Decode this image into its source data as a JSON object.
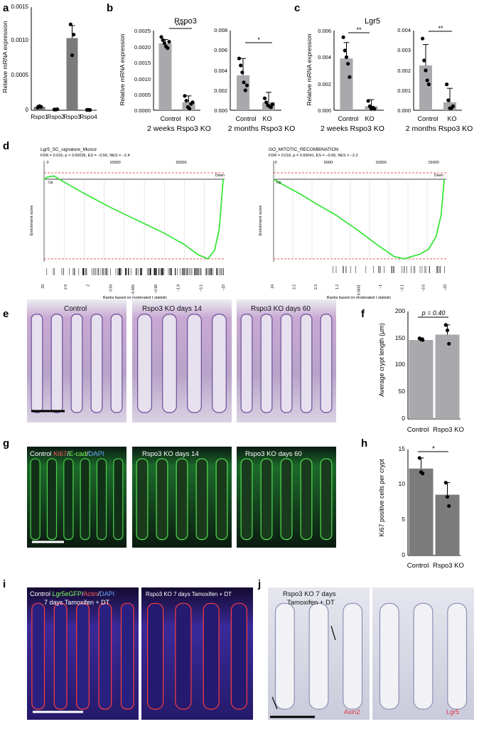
{
  "panels": {
    "a": {
      "letter": "a",
      "ylabel": "Relative mRNA expression",
      "yticks": [
        "0",
        "0.0005",
        "0.0010",
        "0.0015"
      ]
    },
    "b": {
      "letter": "b",
      "title": "Rspo3",
      "ylabel": "Relative mRNA expression",
      "left_yticks": [
        "0.0000",
        "0.0005",
        "0.0010",
        "0.0015",
        "0.0020",
        "0.0025"
      ],
      "right_yticks": [
        "0.000",
        "0.002",
        "0.004",
        "0.006",
        "0.008"
      ],
      "xcats": [
        "Control",
        "KO"
      ],
      "left_sig": "****",
      "right_sig": "*",
      "left_caption": "2 weeks Rspo3 KO",
      "right_caption": "2 months Rspo3 KO"
    },
    "c": {
      "letter": "c",
      "title": "Lgr5",
      "ylabel": "Relative mRNA expression",
      "left_yticks": [
        "0.000",
        "0.002",
        "0.004",
        "0.006"
      ],
      "right_yticks": [
        "0.000",
        "0.001",
        "0.002",
        "0.003",
        "0.004"
      ],
      "xcats": [
        "Control",
        "KO"
      ],
      "left_sig": "**",
      "right_sig": "**",
      "left_caption": "2 weeks Rspo3 KO",
      "right_caption": "2 months Rspo3 KO"
    },
    "d": {
      "letter": "d",
      "left_title": "Lgr5_SC_signature_Munoz",
      "left_stats": "FDR = 0.016, p = 0.00036, ES = −0.56, NES = −2.4",
      "left_top_ticks": [
        "0",
        "10000",
        "20000"
      ],
      "left_bottom_ticks": [
        "29",
        "2.9",
        "2",
        "0.94",
        "−0.065",
        "−0.98",
        "−1.9",
        "−3.1",
        "−23"
      ],
      "right_title": "GO_MITOTIC_RECOMBINATION",
      "right_stats": "FDR = 0.016, p = 0.00041, ES = −0.66, NES = −2.2",
      "right_top_ticks": [
        "0",
        "5000",
        "10000",
        "15000"
      ],
      "right_bottom_ticks": [
        "24",
        "3.2",
        "2.3",
        "1.2",
        "−0.0641",
        "−1",
        "−2.1",
        "−3.5",
        "−23"
      ],
      "ylabel": "Enrichment score",
      "xlabel": "Ranks based on moderated t statistic",
      "up_label": "Up",
      "down_label": "Down"
    },
    "e": {
      "letter": "e",
      "labels": [
        "Control",
        "Rspo3 KO days 14",
        "Rspo3 KO days 60"
      ]
    },
    "f": {
      "letter": "f",
      "ylabel": "Average crypt length (μm)",
      "yticks": [
        "0",
        "50",
        "100",
        "150",
        "200"
      ],
      "xcats": [
        "Control",
        "Rspo3 KO"
      ],
      "pval": "p = 0.40"
    },
    "g": {
      "letter": "g",
      "stain_ki67": "Ki67",
      "stain_ecad": "E-cad",
      "stain_dapi": "DAPI",
      "stain_sep": "/",
      "labels": [
        "Control",
        "Rspo3 KO days 14",
        "Rspo3 KO days 60"
      ]
    },
    "h": {
      "letter": "h",
      "ylabel": "Ki67 positive cells per crypt",
      "yticks": [
        "0",
        "5",
        "10",
        "15"
      ],
      "xcats": [
        "Control",
        "Rspo3 KO"
      ],
      "sig": "*"
    },
    "i": {
      "letter": "i",
      "left_label_ctrl": "Control",
      "left_label_gfp": "Lgr5eGFP",
      "left_label_actin": "Actin",
      "left_label_dapi": "DAPI",
      "sep": "/",
      "left_label_line2": "7 days Tamoxifen + DT",
      "right_label": "Rspo3 KO 7 days Tamoxifen + DT"
    },
    "j": {
      "letter": "j",
      "label_line1": "Rspo3 KO 7 days",
      "label_line2": "Tamoxifen + DT",
      "stain_left": "Axin2",
      "stain_right": "Lgr5"
    }
  },
  "chart_data": [
    {
      "type": "bar",
      "panel": "a",
      "categories": [
        "Rspo1",
        "Rspo2",
        "Rspo3",
        "Rspo4"
      ],
      "values": [
        5e-05,
        1e-05,
        0.00105,
        5e-06
      ],
      "errors": [
        2e-05,
        5e-06,
        0.00018,
        3e-06
      ],
      "points": [
        [
          4e-05,
          6e-05,
          5e-05
        ],
        [
          1e-05,
          1e-05,
          1.5e-05
        ],
        [
          0.00125,
          0.0008,
          0.0011
        ],
        [
          5e-06,
          5e-06,
          4e-06
        ]
      ],
      "ylim": [
        0,
        0.0015
      ],
      "bar_color": "#7b7b7b"
    },
    {
      "type": "bar",
      "panel": "b-left",
      "categories": [
        "Control",
        "KO"
      ],
      "values": [
        0.0021,
        0.00025
      ],
      "errors": [
        0.00012,
        0.0002
      ],
      "points": [
        [
          0.0023,
          0.0022,
          0.0021,
          0.002,
          0.00195,
          0.00215
        ],
        [
          0.00045,
          0.0003,
          0.0001,
          5e-05,
          0.0002,
          0.00025
        ]
      ],
      "ylim": [
        0,
        0.0025
      ],
      "bar_color": "#a9a9ad"
    },
    {
      "type": "bar",
      "panel": "b-right",
      "categories": [
        "Control",
        "KO"
      ],
      "values": [
        0.0035,
        0.0008
      ],
      "errors": [
        0.0017,
        0.001
      ],
      "points": [
        [
          0.0052,
          0.0045,
          0.0038,
          0.0028,
          0.002,
          0.0025
        ],
        [
          0.0012,
          0.0008,
          0.0005,
          0.0004,
          0.0003,
          0.0006
        ]
      ],
      "ylim": [
        0,
        0.008
      ],
      "bar_color": "#a9a9ad"
    },
    {
      "type": "bar",
      "panel": "c-left",
      "categories": [
        "Control",
        "KO"
      ],
      "values": [
        0.0039,
        0.0003
      ],
      "errors": [
        0.0012,
        0.0005
      ],
      "points": [
        [
          0.0055,
          0.0045,
          0.004,
          0.0035,
          0.0025
        ],
        [
          0.0007,
          0.0003,
          0.0001,
          0.0002,
          0.0001
        ]
      ],
      "ylim": [
        0,
        0.006
      ],
      "bar_color": "#a9a9ad"
    },
    {
      "type": "bar",
      "panel": "c-right",
      "categories": [
        "Control",
        "KO"
      ],
      "values": [
        0.00225,
        0.0004
      ],
      "errors": [
        0.00105,
        0.0007
      ],
      "points": [
        [
          0.0036,
          0.0025,
          0.002,
          0.0015,
          0.0013
        ],
        [
          0.0013,
          0.0005,
          0.0001,
          0.0001,
          0.0002
        ]
      ],
      "ylim": [
        0,
        0.004
      ],
      "bar_color": "#a9a9ad"
    },
    {
      "type": "bar",
      "panel": "f",
      "categories": [
        "Control",
        "Rspo3 KO"
      ],
      "values": [
        147,
        157
      ],
      "errors": [
        4,
        18
      ],
      "points": [
        [
          150,
          148,
          147
        ],
        [
          175,
          165,
          140
        ]
      ],
      "ylim": [
        0,
        200
      ],
      "bar_color": "#a9a9ad"
    },
    {
      "type": "bar",
      "panel": "h",
      "categories": [
        "Control",
        "Rspo3 KO"
      ],
      "values": [
        12.3,
        8.6
      ],
      "errors": [
        1.5,
        1.7
      ],
      "points": [
        [
          13.8,
          11.8,
          11.6
        ],
        [
          10.3,
          8.3,
          7.0
        ]
      ],
      "ylim": [
        0,
        15
      ],
      "bar_color": "#7b7b7b"
    },
    {
      "type": "line",
      "panel": "d-left",
      "xlim": [
        0,
        27000
      ],
      "ylim": [
        -0.56,
        0.03
      ],
      "x": [
        0,
        500,
        1500,
        3000,
        6000,
        10000,
        14000,
        18000,
        21000,
        23000,
        24500,
        25500,
        26200,
        26600,
        26800
      ],
      "y": [
        0,
        0.01,
        0.015,
        -0.02,
        -0.1,
        -0.2,
        -0.29,
        -0.38,
        -0.46,
        -0.53,
        -0.56,
        -0.5,
        -0.35,
        -0.12,
        0.0
      ],
      "color": "#39e639"
    },
    {
      "type": "line",
      "panel": "d-right",
      "xlim": [
        0,
        16500
      ],
      "ylim": [
        -0.66,
        0.02
      ],
      "x": [
        0,
        200,
        1000,
        2500,
        4000,
        6000,
        8000,
        10000,
        11500,
        12500,
        13200,
        14000,
        14800,
        15500,
        16000,
        16300
      ],
      "y": [
        0,
        -0.01,
        -0.05,
        -0.12,
        -0.2,
        -0.3,
        -0.42,
        -0.55,
        -0.64,
        -0.66,
        -0.64,
        -0.62,
        -0.58,
        -0.48,
        -0.3,
        0.0
      ],
      "color": "#39e639"
    }
  ]
}
